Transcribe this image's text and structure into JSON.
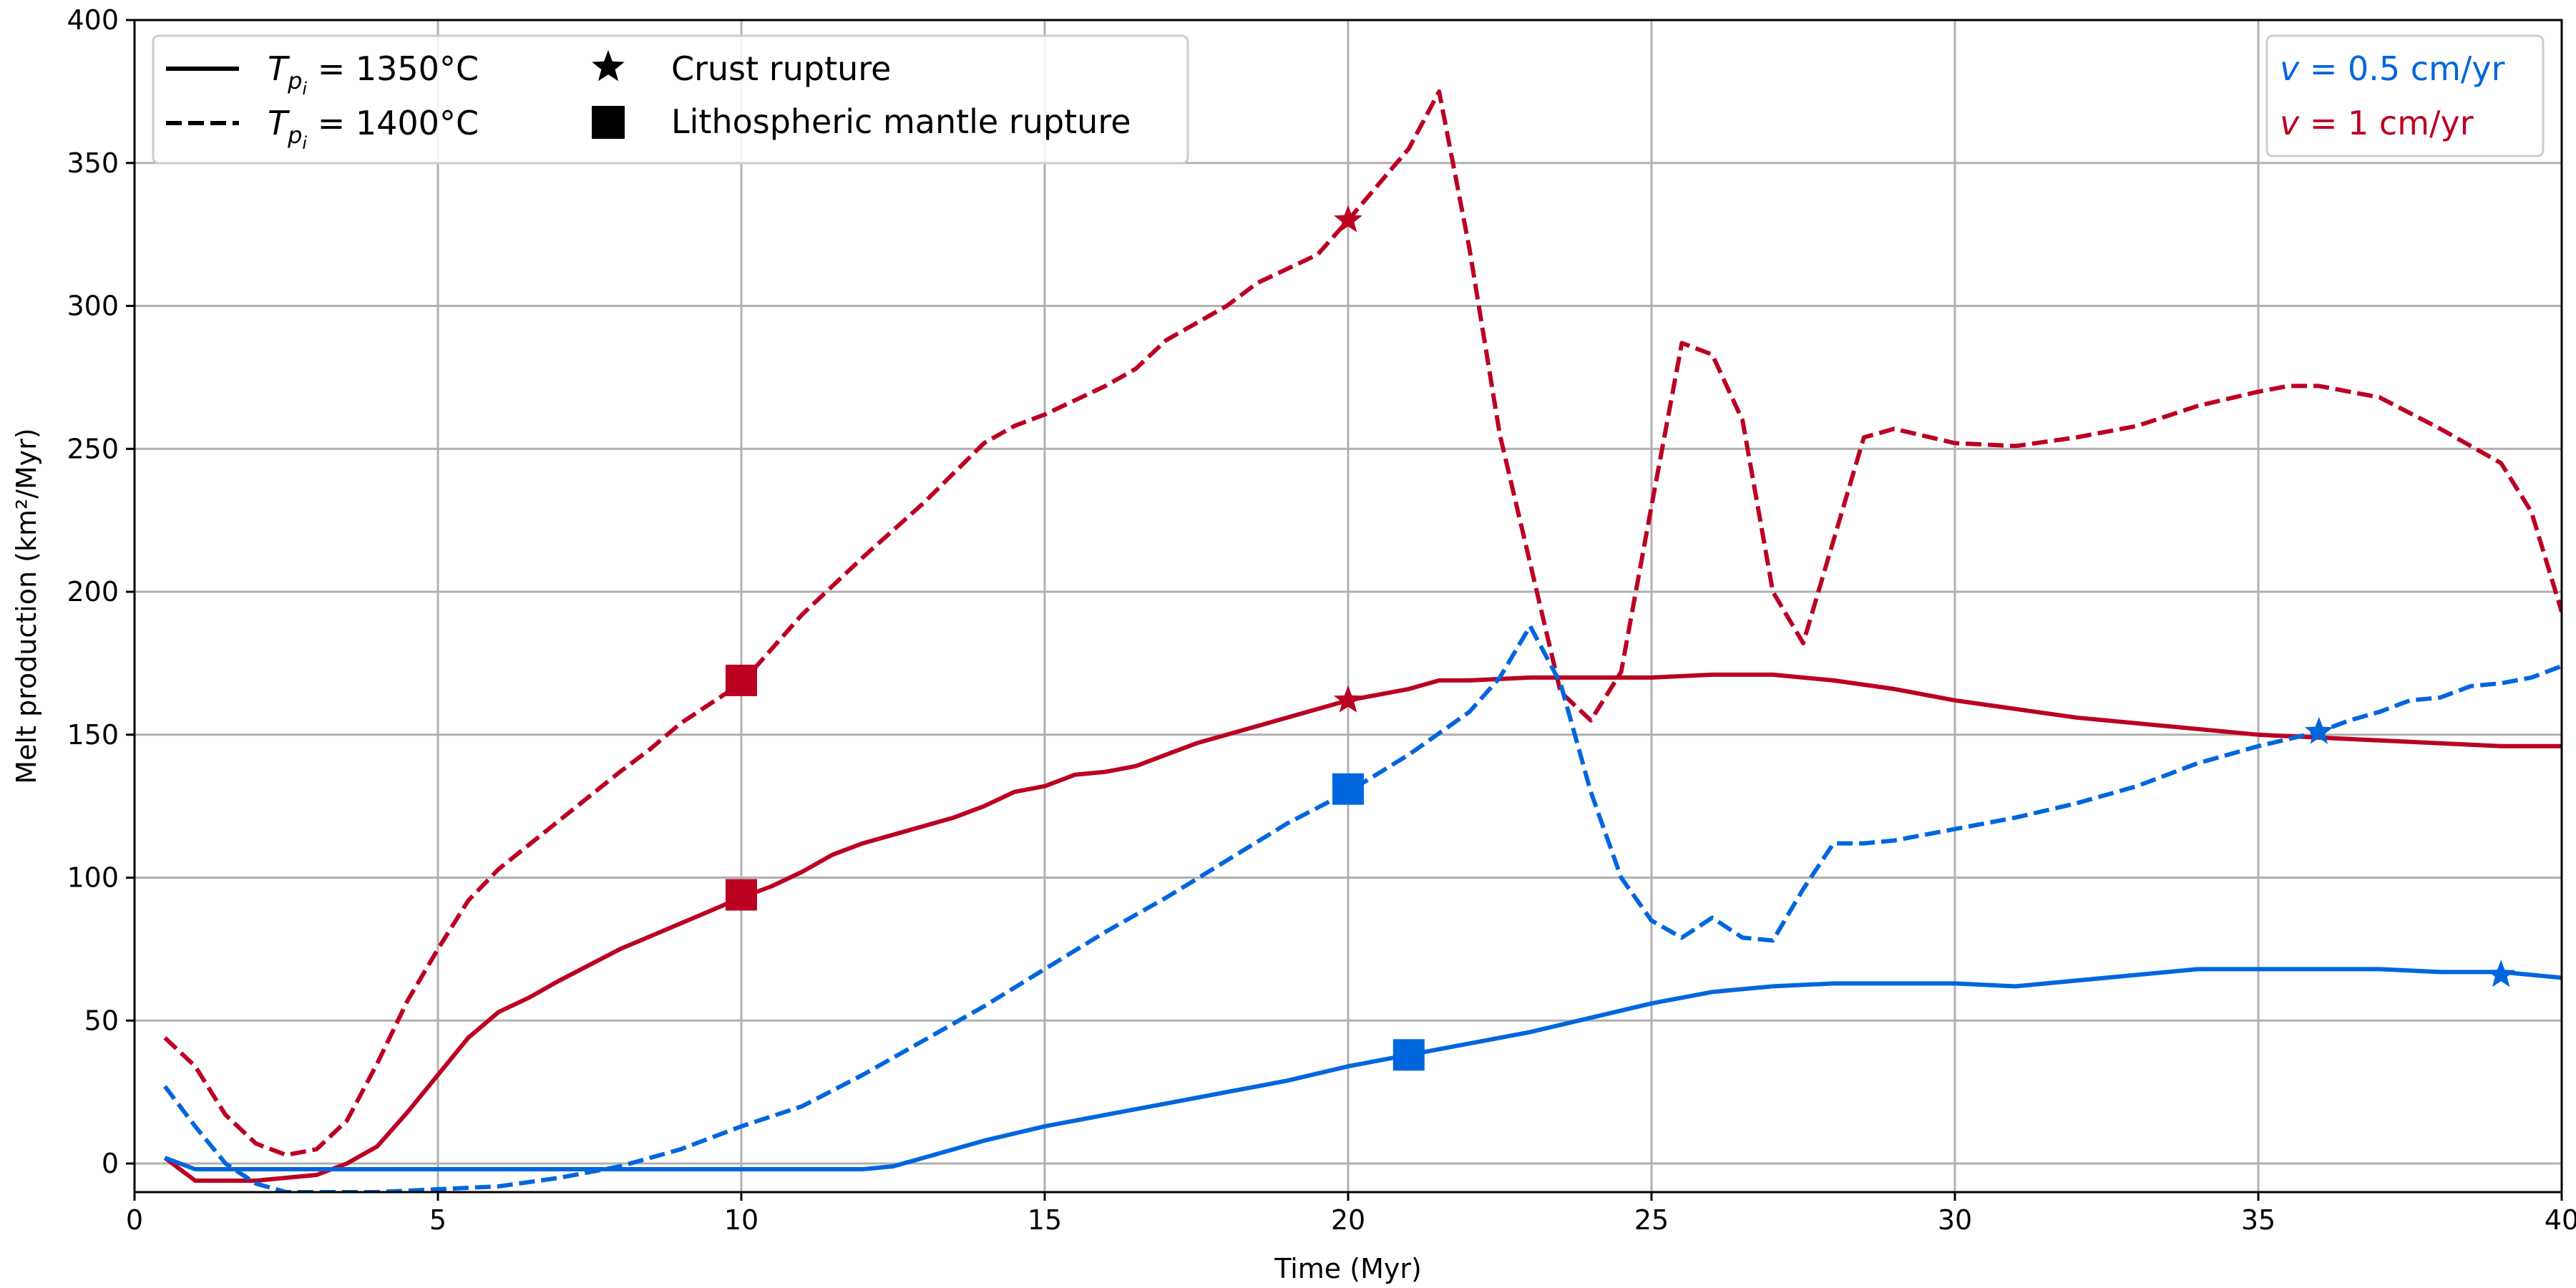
{
  "chart_data": {
    "type": "line",
    "title": "",
    "xlabel": "Time (Myr)",
    "ylabel": "Melt production (km²/Myr)",
    "xlim": [
      0,
      40
    ],
    "ylim": [
      -10,
      400
    ],
    "xticks": [
      0,
      5,
      10,
      15,
      20,
      25,
      30,
      35,
      40
    ],
    "yticks": [
      0,
      50,
      100,
      150,
      200,
      250,
      300,
      350,
      400
    ],
    "grid": true,
    "legend_style": {
      "placement": "top-left",
      "entries": [
        {
          "pre": "T",
          "sub": "p",
          "subsub": "i",
          "post": " = 1350°C",
          "symbol": "solid-line"
        },
        {
          "pre": "T",
          "sub": "p",
          "subsub": "i",
          "post": " = 1400°C",
          "symbol": "dashed-line"
        },
        {
          "label": "Crust rupture",
          "symbol": "star"
        },
        {
          "label": "Lithospheric mantle rupture",
          "symbol": "square"
        }
      ]
    },
    "legend_speed": {
      "placement": "top-right",
      "entries": [
        {
          "var": "v",
          "text": " = 0.5 cm/yr",
          "color": "#0066DD"
        },
        {
          "var": "v",
          "text": " = 1 cm/yr",
          "color": "#BB0022"
        }
      ]
    },
    "colors": {
      "blue": "#0066DD",
      "red": "#BB0022"
    },
    "series": [
      {
        "color": "#BB0022",
        "style": "dashed",
        "x": [
          0.5,
          1,
          1.5,
          2,
          2.5,
          3,
          3.5,
          4,
          4.5,
          5,
          5.5,
          6,
          7,
          8,
          8.5,
          9,
          10,
          11,
          12,
          13,
          14,
          14.5,
          15,
          16,
          16.5,
          17,
          17.5,
          18,
          18.5,
          19,
          19.5,
          20,
          21,
          21.5,
          22,
          22.5,
          23,
          23.5,
          24,
          24.5,
          25,
          25.5,
          26,
          26.5,
          27,
          27.5,
          28,
          28.5,
          29,
          30,
          31,
          32,
          33,
          34,
          35,
          35.5,
          36,
          37,
          38,
          39,
          39.5,
          40
        ],
        "y": [
          44,
          34,
          17,
          7,
          3,
          5,
          15,
          35,
          57,
          75,
          92,
          103,
          120,
          137,
          145,
          154,
          168,
          192,
          212,
          231,
          252,
          258,
          262,
          272,
          278,
          288,
          294,
          300,
          308,
          313,
          318,
          330,
          355,
          375,
          320,
          255,
          210,
          165,
          155,
          172,
          230,
          287,
          283,
          260,
          200,
          182,
          218,
          254,
          257,
          252,
          251,
          254,
          258,
          265,
          270,
          272,
          272,
          268,
          257,
          245,
          228,
          193
        ]
      },
      {
        "color": "#BB0022",
        "style": "solid",
        "x": [
          0.5,
          1,
          2,
          3,
          3.5,
          4,
          4.5,
          5,
          5.5,
          6,
          6.5,
          7,
          8,
          9,
          10,
          10.5,
          11,
          11.5,
          12,
          13,
          13.5,
          14,
          14.5,
          15,
          15.5,
          16,
          16.5,
          17,
          17.5,
          18,
          19,
          20,
          21,
          21.5,
          22,
          23,
          24,
          25,
          26,
          27,
          28,
          29,
          30,
          31,
          32,
          33,
          34,
          35,
          36,
          37,
          38,
          39,
          40
        ],
        "y": [
          2,
          -6,
          -6,
          -4,
          0,
          6,
          18,
          31,
          44,
          53,
          58,
          64,
          75,
          84,
          93,
          97,
          102,
          108,
          112,
          118,
          121,
          125,
          130,
          132,
          136,
          137,
          139,
          143,
          147,
          150,
          156,
          162,
          166,
          169,
          169,
          170,
          170,
          170,
          171,
          171,
          169,
          166,
          162,
          159,
          156,
          154,
          152,
          150,
          149,
          148,
          147,
          146,
          146
        ]
      },
      {
        "color": "#0066DD",
        "style": "dashed",
        "x": [
          0.5,
          1,
          1.5,
          2,
          2.5,
          3,
          4,
          5,
          6,
          7,
          8,
          9,
          10,
          11,
          12,
          13,
          14,
          15,
          16,
          17,
          18,
          19,
          20,
          21,
          22,
          22.5,
          23,
          23.5,
          24,
          24.5,
          25,
          25.5,
          26,
          26.5,
          27,
          27.5,
          28,
          28.5,
          29,
          30,
          31,
          32,
          33,
          34,
          35,
          36,
          36.5,
          37,
          37.5,
          38,
          38.5,
          39,
          39.5,
          40
        ],
        "y": [
          27,
          13,
          0,
          -7,
          -10,
          -10,
          -10,
          -9,
          -8,
          -5,
          -1,
          5,
          13,
          20,
          31,
          43,
          55,
          68,
          81,
          93,
          106,
          119,
          130,
          143,
          158,
          170,
          188,
          168,
          130,
          100,
          85,
          79,
          86,
          79,
          78,
          96,
          112,
          112,
          113,
          117,
          121,
          126,
          132,
          140,
          146,
          151,
          155,
          158,
          162,
          163,
          167,
          168,
          170,
          174
        ]
      },
      {
        "color": "#0066DD",
        "style": "solid",
        "x": [
          0.5,
          1,
          2,
          3,
          4,
          5,
          6,
          7,
          8,
          9,
          10,
          11,
          12,
          12.5,
          13,
          14,
          15,
          16,
          17,
          18,
          19,
          20,
          21,
          22,
          23,
          24,
          25,
          26,
          26.5,
          27,
          28,
          29,
          30,
          31,
          32,
          33,
          34,
          35,
          36,
          37,
          38,
          39,
          39.5,
          40
        ],
        "y": [
          2,
          -2,
          -2,
          -2,
          -2,
          -2,
          -2,
          -2,
          -2,
          -2,
          -2,
          -2,
          -2,
          -1,
          2,
          8,
          13,
          17,
          21,
          25,
          29,
          34,
          38,
          42,
          46,
          51,
          56,
          60,
          61,
          62,
          63,
          63,
          63,
          62,
          64,
          66,
          68,
          68,
          68,
          68,
          67,
          67,
          66,
          65
        ]
      }
    ],
    "markers": [
      {
        "type": "square",
        "color": "#BB0022",
        "x": 10,
        "y": 169
      },
      {
        "type": "square",
        "color": "#BB0022",
        "x": 10,
        "y": 94
      },
      {
        "type": "star",
        "color": "#BB0022",
        "x": 20,
        "y": 330
      },
      {
        "type": "star",
        "color": "#BB0022",
        "x": 20,
        "y": 162
      },
      {
        "type": "square",
        "color": "#0066DD",
        "x": 20,
        "y": 131
      },
      {
        "type": "square",
        "color": "#0066DD",
        "x": 21,
        "y": 38
      },
      {
        "type": "star",
        "color": "#0066DD",
        "x": 36,
        "y": 151
      },
      {
        "type": "star",
        "color": "#0066DD",
        "x": 39,
        "y": 66
      }
    ]
  }
}
